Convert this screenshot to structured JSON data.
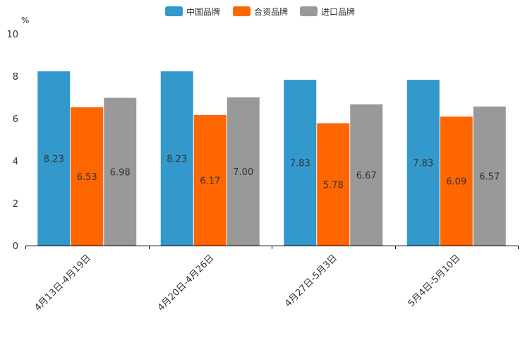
{
  "chart_data": {
    "type": "bar",
    "title": "",
    "ylabel": "%",
    "xlabel": "",
    "ylim": [
      0,
      10
    ],
    "yticks": [
      0,
      2,
      4,
      6,
      8,
      10
    ],
    "grid": false,
    "legend_position": "top-center",
    "categories": [
      "4月13日-4月19日",
      "4月20日-4月26日",
      "4月27日-5月3日",
      "5月4日-5月10日"
    ],
    "series": [
      {
        "name": "中国品牌",
        "color": "#3399cc",
        "values": [
          8.23,
          8.23,
          7.83,
          7.83
        ],
        "labels": [
          "8.23",
          "8.23",
          "7.83",
          "7.83"
        ]
      },
      {
        "name": "合资品牌",
        "color": "#ff6600",
        "values": [
          6.53,
          6.17,
          5.78,
          6.09
        ],
        "labels": [
          "6.53",
          "6.17",
          "5.78",
          "6.09"
        ]
      },
      {
        "name": "进口品牌",
        "color": "#999999",
        "values": [
          6.98,
          7.0,
          6.67,
          6.57
        ],
        "labels": [
          "6.98",
          "7.00",
          "6.67",
          "6.57"
        ]
      }
    ]
  }
}
